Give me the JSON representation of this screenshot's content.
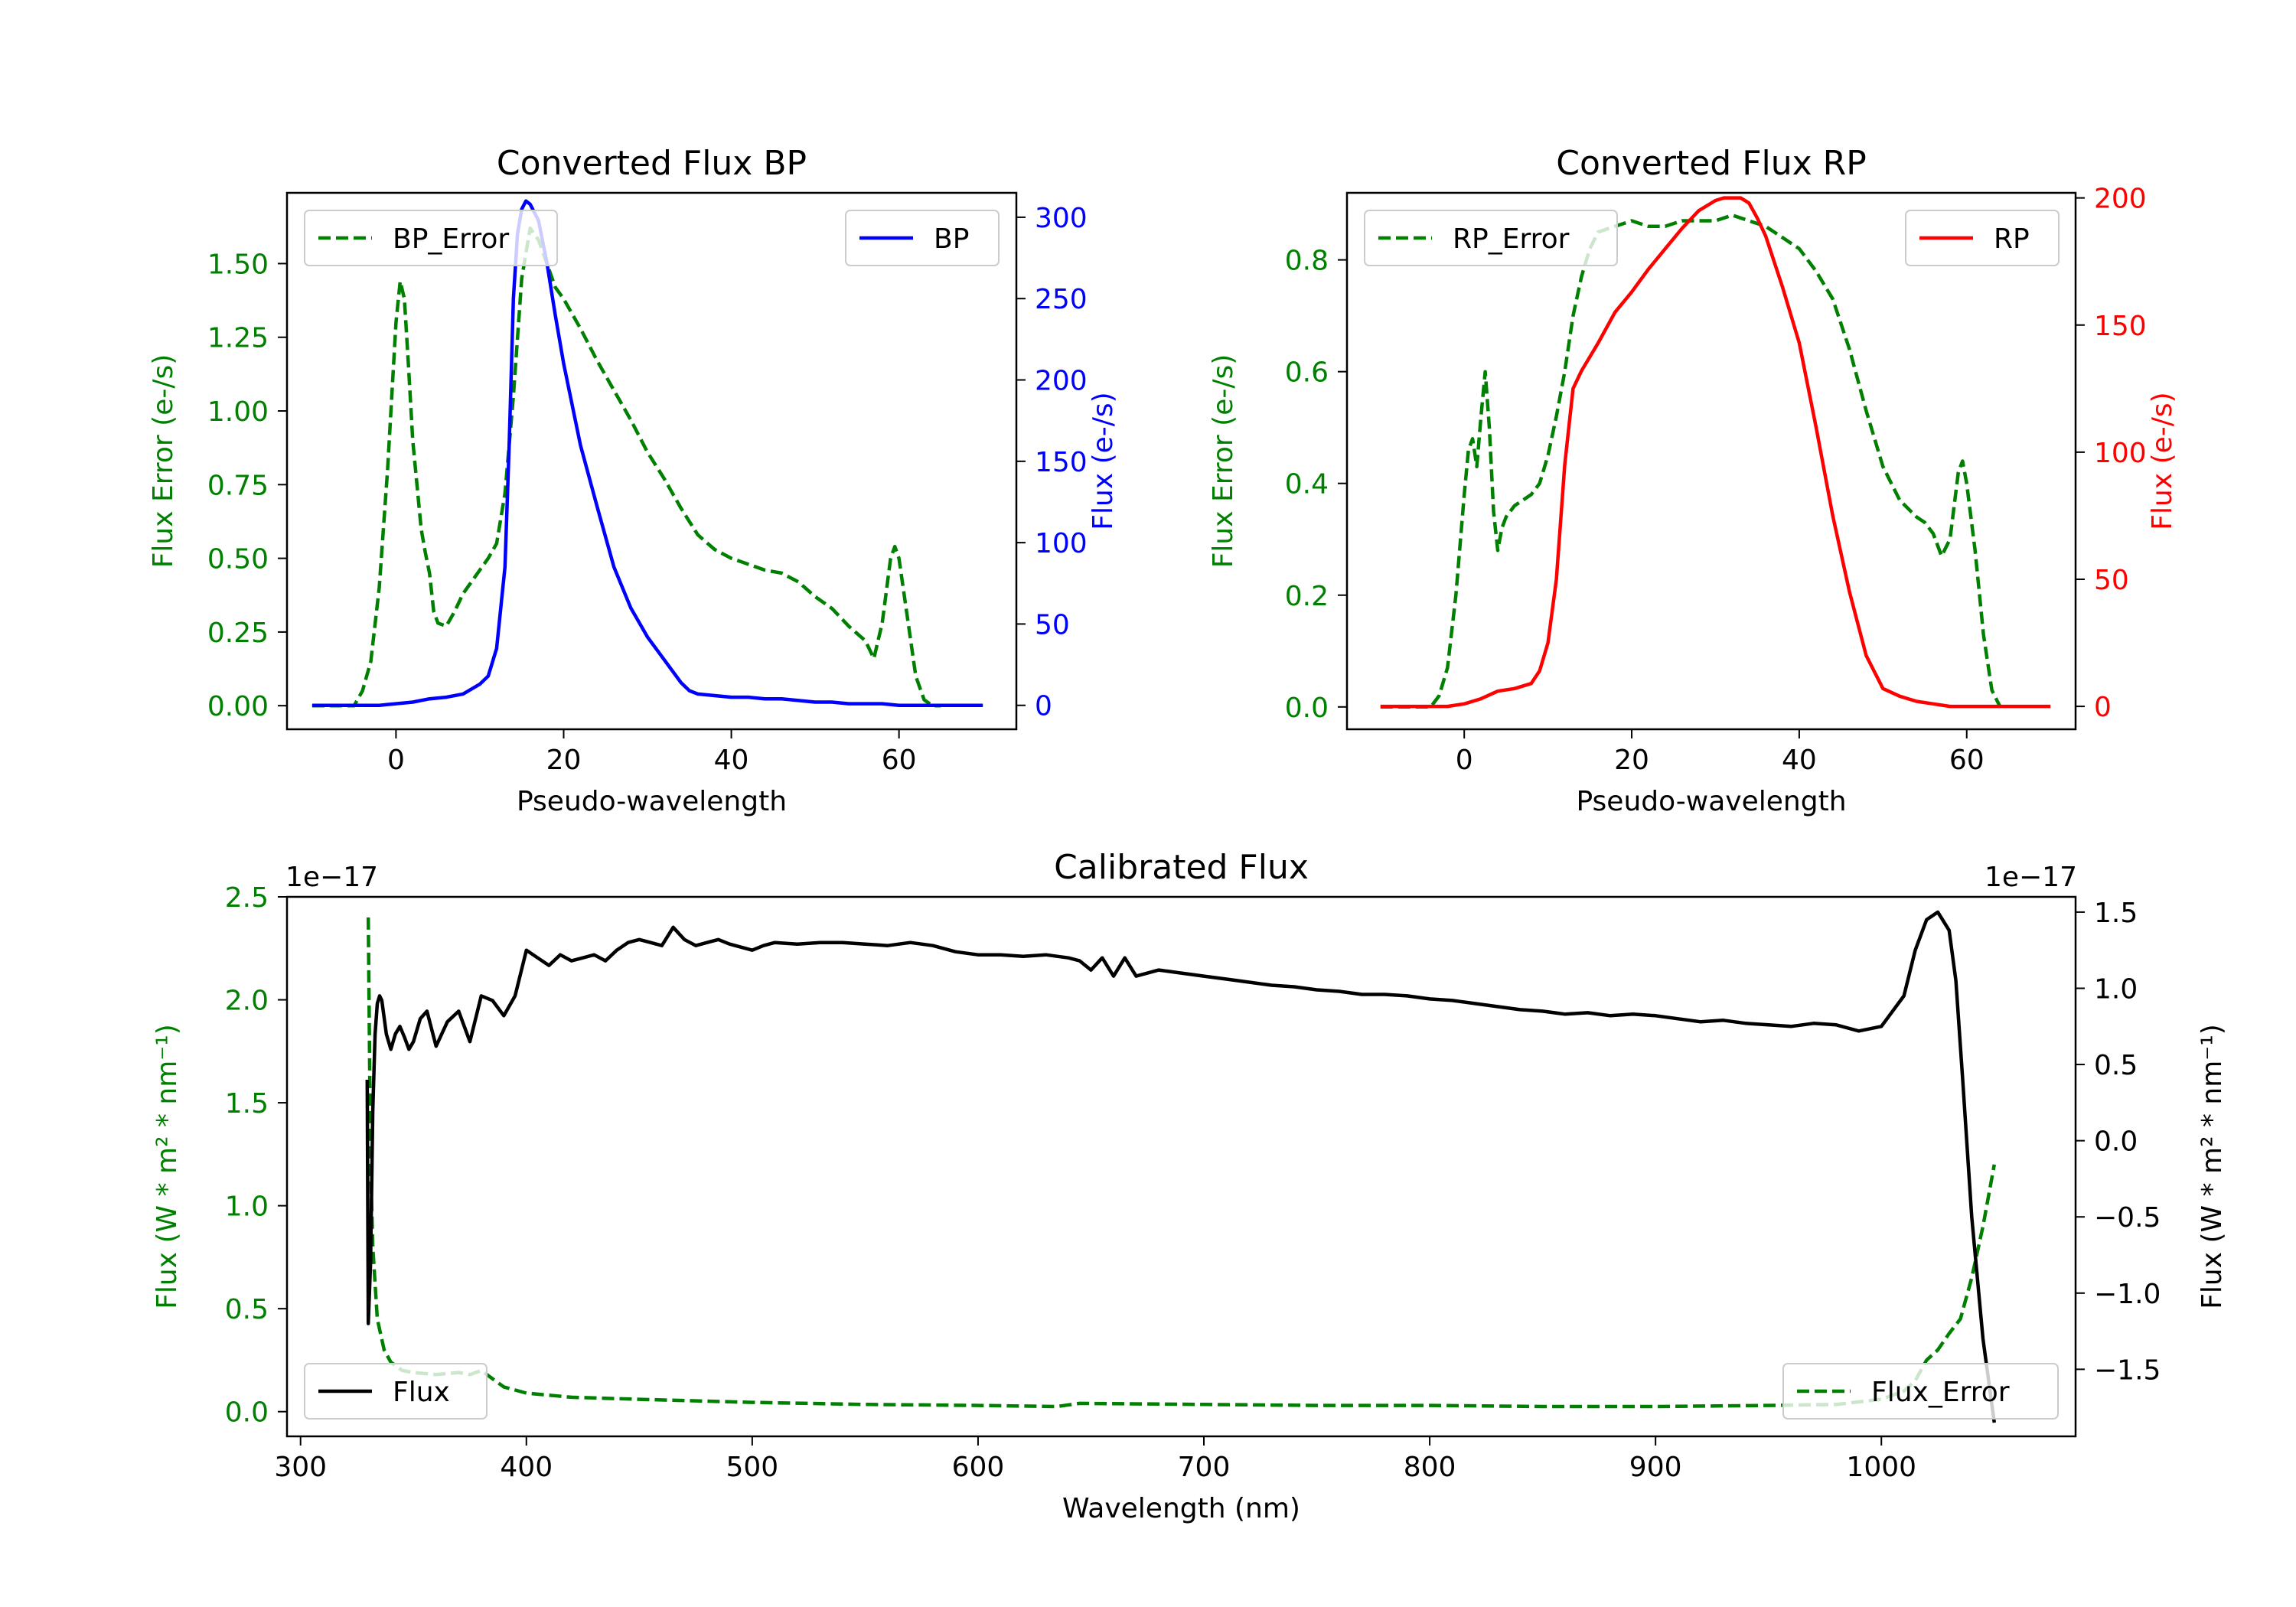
{
  "chart_data": [
    {
      "id": "bp",
      "type": "line",
      "title": "Converted Flux BP",
      "xlabel": "Pseudo-wavelength",
      "xlim": [
        -13,
        74
      ],
      "xticks": [
        0,
        20,
        40,
        60
      ],
      "left_axis": {
        "label": "Flux Error (e-/s)",
        "color": "#008000",
        "ylim": [
          -0.08,
          1.74
        ],
        "ticks": [
          0,
          0.25,
          0.5,
          0.75,
          1.0,
          1.25,
          1.5
        ],
        "tick_labels": [
          "0.00",
          "0.25",
          "0.50",
          "0.75",
          "1.00",
          "1.25",
          "1.50"
        ]
      },
      "right_axis": {
        "label": "Flux (e-/s)",
        "color": "#0000ff",
        "ylim": [
          -14.7,
          315
        ],
        "ticks": [
          0,
          50,
          100,
          150,
          200,
          250,
          300
        ],
        "tick_labels": [
          "0",
          "50",
          "100",
          "150",
          "200",
          "250",
          "300"
        ]
      },
      "series": [
        {
          "name": "BP_Error",
          "axis": "left",
          "color": "#008000",
          "dash": true,
          "x": [
            -10,
            -5,
            -4,
            -3,
            -2,
            -1,
            0,
            0.5,
            1,
            1.5,
            2,
            3,
            3.5,
            4,
            4.5,
            5,
            6,
            7,
            8,
            9,
            10,
            11,
            12,
            13,
            14,
            15,
            16,
            17,
            18,
            19,
            20,
            22,
            24,
            26,
            28,
            30,
            32,
            34,
            36,
            38,
            40,
            42,
            44,
            46,
            48,
            50,
            52,
            54,
            56,
            57,
            58,
            59,
            59.5,
            60,
            61,
            62,
            63,
            64,
            65
          ],
          "y": [
            0,
            0,
            0.05,
            0.15,
            0.4,
            0.8,
            1.3,
            1.44,
            1.38,
            1.15,
            0.9,
            0.6,
            0.52,
            0.45,
            0.32,
            0.28,
            0.27,
            0.32,
            0.38,
            0.42,
            0.46,
            0.5,
            0.55,
            0.72,
            1.05,
            1.45,
            1.62,
            1.58,
            1.5,
            1.42,
            1.38,
            1.28,
            1.17,
            1.07,
            0.97,
            0.86,
            0.77,
            0.67,
            0.58,
            0.53,
            0.5,
            0.48,
            0.46,
            0.45,
            0.42,
            0.37,
            0.33,
            0.27,
            0.22,
            0.16,
            0.28,
            0.5,
            0.54,
            0.5,
            0.3,
            0.1,
            0.02,
            0,
            0
          ]
        },
        {
          "name": "BP",
          "axis": "right",
          "color": "#0000ff",
          "dash": false,
          "x": [
            -10,
            -2,
            0,
            2,
            4,
            6,
            8,
            10,
            11,
            12,
            13,
            13.5,
            14,
            14.5,
            15,
            15.5,
            16,
            17,
            18,
            19,
            20,
            22,
            24,
            26,
            28,
            30,
            32,
            34,
            35,
            36,
            38,
            40,
            42,
            44,
            46,
            48,
            50,
            52,
            54,
            56,
            58,
            60,
            62,
            64,
            70
          ],
          "y": [
            0,
            0,
            1,
            2,
            4,
            5,
            7,
            13,
            18,
            35,
            85,
            160,
            250,
            290,
            305,
            310,
            308,
            298,
            272,
            240,
            210,
            160,
            122,
            85,
            60,
            42,
            28,
            14,
            9,
            7,
            6,
            5,
            5,
            4,
            4,
            3,
            2,
            2,
            1,
            1,
            1,
            0,
            0,
            0,
            0
          ]
        }
      ],
      "legend": [
        {
          "label": "BP_Error",
          "position": "top-left"
        },
        {
          "label": "BP",
          "position": "top-right"
        }
      ]
    },
    {
      "id": "rp",
      "type": "line",
      "title": "Converted Flux RP",
      "xlabel": "Pseudo-wavelength",
      "xlim": [
        -14,
        73
      ],
      "xticks": [
        0,
        20,
        40,
        60
      ],
      "left_axis": {
        "label": "Flux Error (e-/s)",
        "color": "#008000",
        "ylim": [
          -0.04,
          0.92
        ],
        "ticks": [
          0,
          0.2,
          0.4,
          0.6,
          0.8
        ],
        "tick_labels": [
          "0.0",
          "0.2",
          "0.4",
          "0.6",
          "0.8"
        ]
      },
      "right_axis": {
        "label": "Flux (e-/s)",
        "color": "#ff0000",
        "ylim": [
          -9,
          202
        ],
        "ticks": [
          0,
          50,
          100,
          150,
          200
        ],
        "tick_labels": [
          "0",
          "50",
          "100",
          "150",
          "200"
        ]
      },
      "series": [
        {
          "name": "RP_Error",
          "axis": "left",
          "color": "#008000",
          "dash": true,
          "x": [
            -10,
            -4,
            -3,
            -2,
            -1,
            0,
            0.5,
            1,
            1.5,
            2,
            2.5,
            3,
            3.5,
            4,
            4.5,
            5,
            6,
            7,
            8,
            9,
            10,
            11,
            12,
            13,
            14,
            15,
            16,
            18,
            20,
            22,
            24,
            26,
            28,
            30,
            32,
            34,
            36,
            38,
            40,
            42,
            44,
            46,
            48,
            50,
            52,
            54,
            55,
            56,
            57,
            58,
            59,
            59.5,
            60,
            61,
            62,
            63,
            64
          ],
          "y": [
            0,
            0,
            0.02,
            0.07,
            0.2,
            0.38,
            0.46,
            0.48,
            0.43,
            0.52,
            0.6,
            0.5,
            0.35,
            0.28,
            0.32,
            0.34,
            0.36,
            0.37,
            0.38,
            0.4,
            0.45,
            0.52,
            0.6,
            0.7,
            0.77,
            0.82,
            0.85,
            0.86,
            0.87,
            0.86,
            0.86,
            0.87,
            0.87,
            0.87,
            0.88,
            0.87,
            0.86,
            0.84,
            0.82,
            0.78,
            0.73,
            0.64,
            0.53,
            0.43,
            0.37,
            0.34,
            0.33,
            0.31,
            0.27,
            0.3,
            0.42,
            0.44,
            0.4,
            0.28,
            0.13,
            0.03,
            0
          ]
        },
        {
          "name": "RP",
          "axis": "right",
          "color": "#ff0000",
          "dash": false,
          "x": [
            -10,
            -2,
            0,
            2,
            4,
            6,
            8,
            9,
            10,
            11,
            12,
            13,
            14,
            16,
            18,
            20,
            22,
            24,
            26,
            28,
            30,
            31,
            32,
            33,
            34,
            35,
            36,
            38,
            40,
            42,
            44,
            46,
            48,
            50,
            52,
            54,
            56,
            58,
            60,
            62,
            64,
            70
          ],
          "y": [
            0,
            0,
            1,
            3,
            6,
            7,
            9,
            14,
            25,
            50,
            95,
            125,
            132,
            143,
            155,
            163,
            172,
            180,
            188,
            195,
            199,
            200,
            200,
            200,
            198,
            192,
            185,
            165,
            143,
            110,
            75,
            45,
            20,
            7,
            4,
            2,
            1,
            0,
            0,
            0,
            0,
            0
          ]
        }
      ],
      "legend": [
        {
          "label": "RP_Error",
          "position": "top-left"
        },
        {
          "label": "RP",
          "position": "top-right"
        }
      ]
    },
    {
      "id": "cal",
      "type": "line",
      "title": "Calibrated Flux",
      "xlabel": "Wavelength (nm)",
      "xlim": [
        294,
        1086
      ],
      "xticks": [
        300,
        400,
        500,
        600,
        700,
        800,
        900,
        1000
      ],
      "left_axis": {
        "label": "Flux (W * m² * nm⁻¹)",
        "color": "#008000",
        "offset_text": "1e−17",
        "ylim": [
          -0.12,
          2.5
        ],
        "ticks": [
          0,
          0.5,
          1.0,
          1.5,
          2.0,
          2.5
        ],
        "tick_labels": [
          "0.0",
          "0.5",
          "1.0",
          "1.5",
          "2.0",
          "2.5"
        ]
      },
      "right_axis": {
        "label": "Flux (W * m² * nm⁻¹)",
        "color": "#000000",
        "offset_text": "1e−17",
        "ylim": [
          -1.94,
          1.6
        ],
        "ticks": [
          -1.5,
          -1.0,
          -0.5,
          0.0,
          0.5,
          1.0,
          1.5
        ],
        "tick_labels": [
          "−1.5",
          "−1.0",
          "−0.5",
          "0.0",
          "0.5",
          "1.0",
          "1.5"
        ]
      },
      "series": [
        {
          "name": "Flux_Error",
          "axis": "left",
          "color": "#008000",
          "dash": true,
          "x": [
            330,
            331,
            332,
            334,
            337,
            340,
            345,
            350,
            360,
            370,
            375,
            380,
            385,
            390,
            400,
            420,
            450,
            500,
            550,
            600,
            635,
            645,
            700,
            750,
            800,
            850,
            900,
            950,
            980,
            1000,
            1010,
            1015,
            1020,
            1025,
            1030,
            1035,
            1040,
            1045,
            1050
          ],
          "y": [
            2.4,
            1.2,
            0.8,
            0.45,
            0.3,
            0.24,
            0.2,
            0.19,
            0.18,
            0.19,
            0.18,
            0.2,
            0.16,
            0.12,
            0.09,
            0.07,
            0.06,
            0.045,
            0.035,
            0.03,
            0.025,
            0.04,
            0.035,
            0.03,
            0.03,
            0.025,
            0.025,
            0.03,
            0.035,
            0.06,
            0.1,
            0.15,
            0.25,
            0.3,
            0.38,
            0.45,
            0.65,
            0.9,
            1.2
          ]
        },
        {
          "name": "Flux",
          "axis": "right",
          "color": "#000000",
          "dash": false,
          "x": [
            329.5,
            330,
            331,
            332,
            333,
            334,
            335,
            336,
            338,
            340,
            342,
            344,
            346,
            348,
            350,
            353,
            356,
            360,
            365,
            370,
            375,
            380,
            385,
            390,
            395,
            400,
            405,
            410,
            415,
            420,
            425,
            430,
            435,
            440,
            445,
            450,
            455,
            460,
            465,
            470,
            475,
            480,
            485,
            490,
            495,
            500,
            505,
            510,
            520,
            530,
            540,
            550,
            560,
            570,
            580,
            590,
            600,
            610,
            620,
            630,
            640,
            645,
            650,
            655,
            660,
            665,
            670,
            680,
            690,
            700,
            710,
            720,
            730,
            740,
            750,
            760,
            770,
            780,
            790,
            800,
            810,
            820,
            830,
            840,
            850,
            860,
            870,
            880,
            890,
            900,
            910,
            920,
            930,
            940,
            950,
            960,
            970,
            980,
            990,
            1000,
            1010,
            1015,
            1020,
            1025,
            1030,
            1033,
            1036,
            1040,
            1045,
            1050
          ],
          "y": [
            0.4,
            -1.2,
            -0.8,
            0.2,
            0.7,
            0.9,
            0.95,
            0.92,
            0.7,
            0.6,
            0.7,
            0.75,
            0.68,
            0.6,
            0.65,
            0.8,
            0.85,
            0.62,
            0.78,
            0.85,
            0.65,
            0.95,
            0.92,
            0.82,
            0.95,
            1.25,
            1.2,
            1.15,
            1.22,
            1.18,
            1.2,
            1.22,
            1.18,
            1.25,
            1.3,
            1.32,
            1.3,
            1.28,
            1.4,
            1.32,
            1.28,
            1.3,
            1.32,
            1.29,
            1.27,
            1.25,
            1.28,
            1.3,
            1.29,
            1.3,
            1.3,
            1.29,
            1.28,
            1.3,
            1.28,
            1.24,
            1.22,
            1.22,
            1.21,
            1.22,
            1.2,
            1.18,
            1.12,
            1.2,
            1.08,
            1.2,
            1.08,
            1.12,
            1.1,
            1.08,
            1.06,
            1.04,
            1.02,
            1.01,
            0.99,
            0.98,
            0.96,
            0.96,
            0.95,
            0.93,
            0.92,
            0.9,
            0.88,
            0.86,
            0.85,
            0.83,
            0.84,
            0.82,
            0.83,
            0.82,
            0.8,
            0.78,
            0.79,
            0.77,
            0.76,
            0.75,
            0.77,
            0.76,
            0.72,
            0.75,
            0.95,
            1.25,
            1.45,
            1.5,
            1.38,
            1.05,
            0.4,
            -0.5,
            -1.3,
            -1.85
          ]
        }
      ],
      "legend": [
        {
          "label": "Flux",
          "position": "bottom-left"
        },
        {
          "label": "Flux_Error",
          "position": "bottom-right"
        }
      ]
    }
  ]
}
